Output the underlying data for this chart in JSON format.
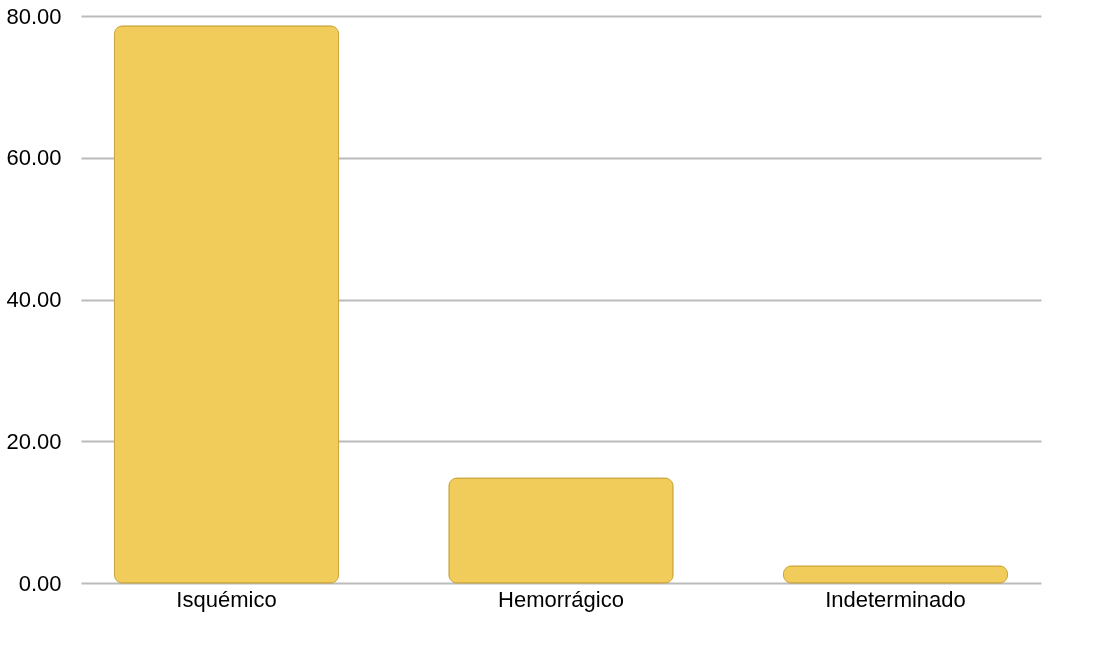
{
  "chart_data": {
    "type": "bar",
    "categories": [
      "Isquémico",
      "Hemorrágico",
      "Indeterminado"
    ],
    "values": [
      78.6,
      14.8,
      2.4
    ],
    "color": "#f2cc5a",
    "ylim": [
      0,
      80
    ],
    "yticks": [
      {
        "value": 0,
        "label": "0.00"
      },
      {
        "value": 20,
        "label": "20.00"
      },
      {
        "value": 40,
        "label": "40.00"
      },
      {
        "value": 60,
        "label": "60.00"
      },
      {
        "value": 80,
        "label": "80.00"
      }
    ],
    "grid": "y"
  }
}
